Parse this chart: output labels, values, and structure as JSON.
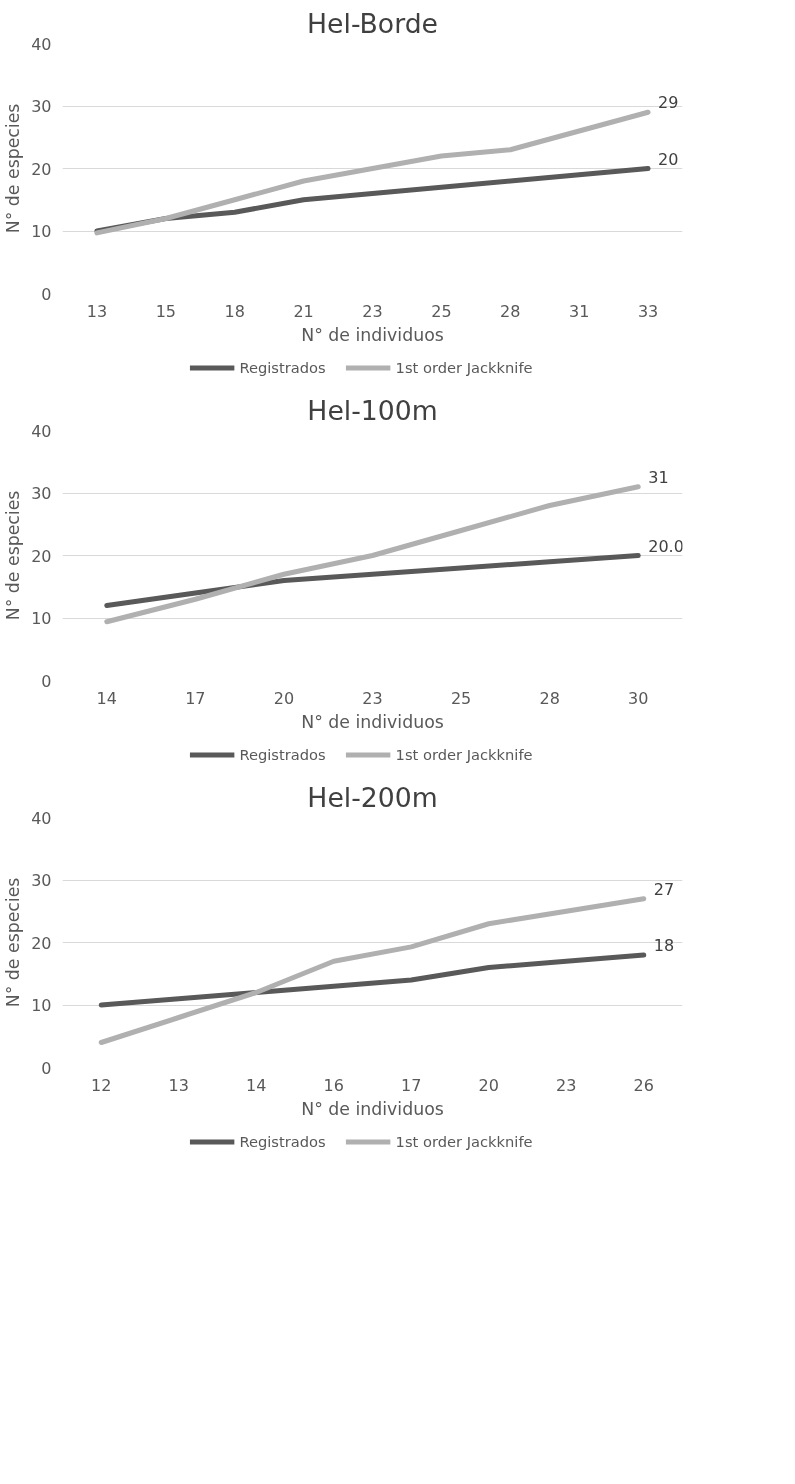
{
  "chart_data": [
    {
      "type": "line",
      "title": "Hel-Borde",
      "xlabel": "N° de individuos",
      "ylabel": "N° de especies",
      "categories": [
        "13",
        "15",
        "18",
        "21",
        "23",
        "25",
        "28",
        "31",
        "33"
      ],
      "ylim": [
        0,
        40
      ],
      "yticks": [
        0,
        10,
        20,
        30,
        40
      ],
      "grid": "y",
      "legend": "bottom",
      "line_style": "solid",
      "marker": "none",
      "series": [
        {
          "name": "Registrados",
          "color": "#595959",
          "values": [
            10,
            12,
            13,
            15,
            16,
            17,
            18,
            19,
            20
          ],
          "value_labels": [
            null,
            null,
            null,
            null,
            null,
            null,
            null,
            null,
            "20"
          ]
        },
        {
          "name": "1st order Jackknife",
          "color": "#b0b0b0",
          "values": [
            9.7,
            12,
            15,
            18,
            20,
            22,
            23,
            26,
            29
          ],
          "value_labels": [
            null,
            null,
            null,
            null,
            null,
            null,
            null,
            null,
            "29"
          ]
        }
      ]
    },
    {
      "type": "line",
      "title": "Hel-100m",
      "xlabel": "N° de individuos",
      "ylabel": "N° de especies",
      "categories": [
        "14",
        "17",
        "20",
        "23",
        "25",
        "28",
        "30"
      ],
      "ylim": [
        0,
        40
      ],
      "yticks": [
        0,
        10,
        20,
        30,
        40
      ],
      "grid": "y",
      "legend": "bottom",
      "line_style": "solid",
      "marker": "none",
      "series": [
        {
          "name": "Registrados",
          "color": "#595959",
          "values": [
            12,
            14,
            16,
            17,
            18,
            19,
            20
          ],
          "value_labels": [
            null,
            null,
            null,
            null,
            null,
            null,
            "20.0"
          ]
        },
        {
          "name": "1st order Jackknife",
          "color": "#b0b0b0",
          "values": [
            9.4,
            13,
            17,
            20,
            24,
            28,
            31
          ],
          "value_labels": [
            null,
            null,
            null,
            null,
            null,
            null,
            "31"
          ]
        }
      ]
    },
    {
      "type": "line",
      "title": "Hel-200m",
      "xlabel": "N° de individuos",
      "ylabel": "N° de especies",
      "categories": [
        "12",
        "13",
        "14",
        "16",
        "17",
        "20",
        "23",
        "26"
      ],
      "ylim": [
        0,
        40
      ],
      "yticks": [
        0,
        10,
        20,
        30,
        40
      ],
      "grid": "y",
      "legend": "bottom",
      "line_style": "solid",
      "marker": "none",
      "series": [
        {
          "name": "Registrados",
          "color": "#595959",
          "values": [
            10,
            11,
            12,
            13,
            14,
            16,
            17,
            18
          ],
          "value_labels": [
            null,
            null,
            null,
            null,
            null,
            null,
            null,
            "18"
          ]
        },
        {
          "name": "1st order Jackknife",
          "color": "#b0b0b0",
          "values": [
            4,
            8,
            12,
            17,
            19.3,
            23,
            25,
            27
          ],
          "value_labels": [
            null,
            null,
            null,
            null,
            null,
            null,
            null,
            "27"
          ]
        }
      ]
    }
  ]
}
